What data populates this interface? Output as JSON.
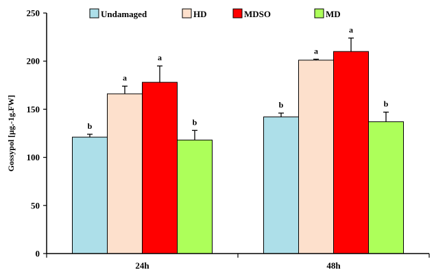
{
  "chart_data": {
    "type": "bar",
    "title": "",
    "xlabel": "",
    "ylabel": "Gossypol [μg.-1g.FW]",
    "ylim": [
      0,
      250
    ],
    "yticks": [
      "0",
      "50",
      "100",
      "150",
      "200",
      "250"
    ],
    "ytick_values": [
      0,
      50,
      100,
      150,
      200,
      250
    ],
    "categories": [
      "24h",
      "48h"
    ],
    "legend_position": "top",
    "series": [
      {
        "name": "Undamaged",
        "color": "#ADDFE9",
        "values": [
          121,
          142
        ],
        "errors": [
          3,
          4
        ],
        "letters": [
          "b",
          "b"
        ]
      },
      {
        "name": "HD",
        "color": "#FDE0CC",
        "values": [
          166,
          201
        ],
        "errors": [
          8,
          1
        ],
        "letters": [
          "a",
          "a"
        ]
      },
      {
        "name": "MDSO",
        "color": "#FF0000",
        "values": [
          178,
          210
        ],
        "errors": [
          17,
          14
        ],
        "letters": [
          "a",
          "a"
        ]
      },
      {
        "name": "MD",
        "color": "#ADFF5A",
        "values": [
          118,
          137
        ],
        "errors": [
          10,
          10
        ],
        "letters": [
          "b",
          "b"
        ]
      }
    ]
  }
}
